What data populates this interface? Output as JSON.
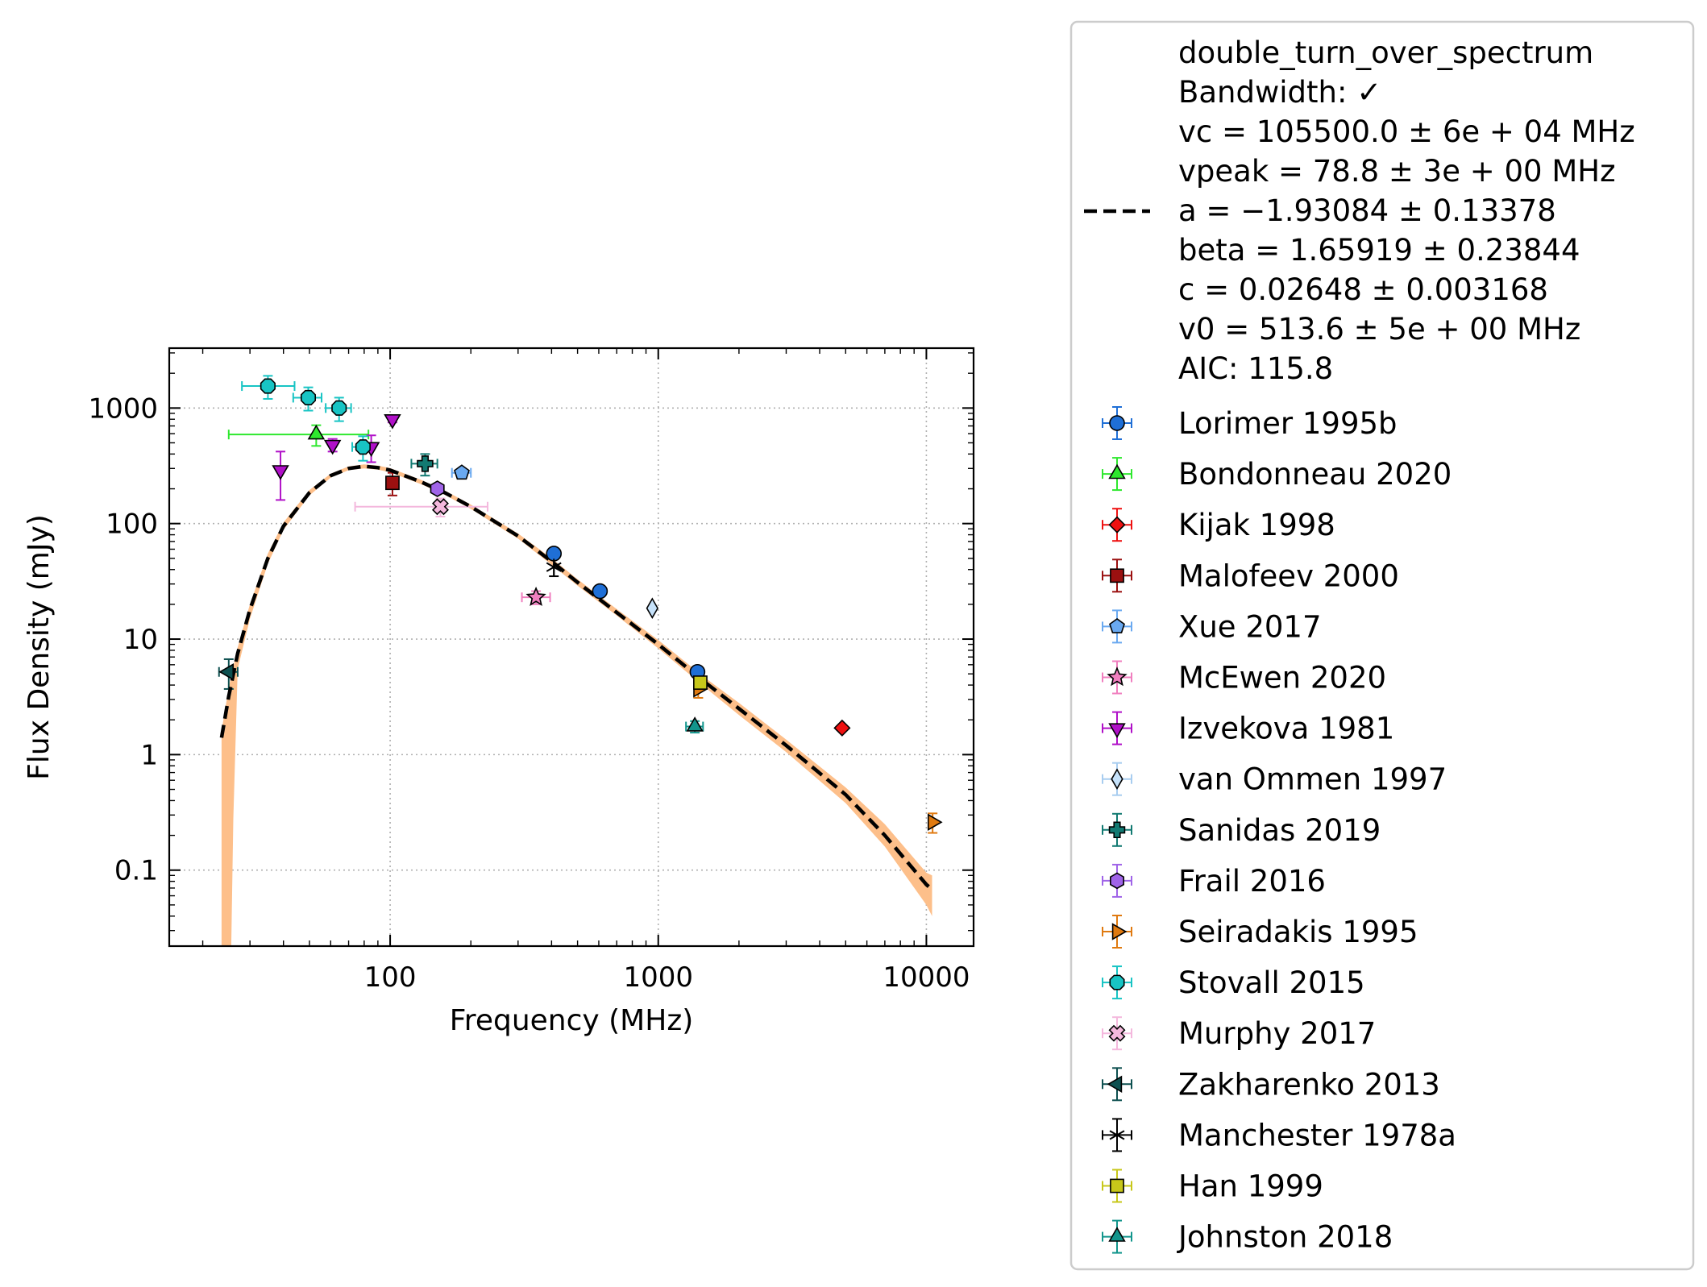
{
  "chart_data": {
    "type": "scatter",
    "xlabel": "Frequency (MHz)",
    "ylabel": "Flux Density (mJy)",
    "x_scale": "log",
    "y_scale": "log",
    "xlim": [
      15,
      15000
    ],
    "ylim": [
      0.022,
      3300
    ],
    "grid": true,
    "x_tick_values": [
      100,
      1000,
      10000
    ],
    "x_tick_labels": [
      "100",
      "1000",
      "10000"
    ],
    "y_tick_values": [
      0.1,
      1,
      10,
      100,
      1000
    ],
    "y_tick_labels": [
      "0.1",
      "1",
      "10",
      "100",
      "1000"
    ],
    "legend_position": "outside-right",
    "fit": {
      "name": "double_turn_over_spectrum",
      "label_lines": [
        "double_turn_over_spectrum",
        "Bandwidth: ✓",
        "vc = 105500.0 ± 6e + 04 MHz",
        "vpeak = 78.8 ± 3e + 00 MHz",
        "a = −1.93084 ± 0.13378",
        "beta = 1.65919 ± 0.23844",
        "c = 0.02648 ± 0.003168",
        "v0 = 513.6 ± 5e + 00 MHz",
        "AIC: 115.8"
      ],
      "line_color": "#000000",
      "band_color": "#fdbf8a",
      "curve": [
        [
          23.5,
          1.4
        ],
        [
          25,
          3.2
        ],
        [
          27,
          7.5
        ],
        [
          30,
          18
        ],
        [
          35,
          50
        ],
        [
          40,
          95
        ],
        [
          50,
          185
        ],
        [
          60,
          260
        ],
        [
          70,
          300
        ],
        [
          80,
          313
        ],
        [
          90,
          305
        ],
        [
          100,
          290
        ],
        [
          130,
          230
        ],
        [
          160,
          185
        ],
        [
          200,
          140
        ],
        [
          300,
          78
        ],
        [
          400,
          47
        ],
        [
          500,
          31
        ],
        [
          700,
          17
        ],
        [
          1000,
          9.0
        ],
        [
          1500,
          4.2
        ],
        [
          2000,
          2.5
        ],
        [
          3000,
          1.2
        ],
        [
          5000,
          0.45
        ],
        [
          7000,
          0.2
        ],
        [
          10000,
          0.075
        ],
        [
          10500,
          0.068
        ]
      ],
      "band_upper": [
        [
          23.5,
          1.6
        ],
        [
          25,
          3.8
        ],
        [
          27,
          8.5
        ],
        [
          30,
          20
        ],
        [
          35,
          55
        ],
        [
          40,
          102
        ],
        [
          50,
          195
        ],
        [
          60,
          270
        ],
        [
          70,
          312
        ],
        [
          80,
          325
        ],
        [
          90,
          318
        ],
        [
          100,
          302
        ],
        [
          130,
          240
        ],
        [
          160,
          193
        ],
        [
          200,
          146
        ],
        [
          300,
          82
        ],
        [
          400,
          50
        ],
        [
          500,
          33
        ],
        [
          700,
          18.2
        ],
        [
          1000,
          9.8
        ],
        [
          1500,
          4.6
        ],
        [
          2000,
          2.8
        ],
        [
          3000,
          1.35
        ],
        [
          5000,
          0.52
        ],
        [
          7000,
          0.25
        ],
        [
          10000,
          0.095
        ],
        [
          10500,
          0.09
        ]
      ],
      "band_lower": [
        [
          23.5,
          0.001
        ],
        [
          25,
          0.001
        ],
        [
          26,
          0.28
        ],
        [
          27,
          5.5
        ],
        [
          30,
          15
        ],
        [
          35,
          45
        ],
        [
          40,
          88
        ],
        [
          50,
          175
        ],
        [
          60,
          250
        ],
        [
          70,
          290
        ],
        [
          80,
          300
        ],
        [
          90,
          293
        ],
        [
          100,
          278
        ],
        [
          130,
          220
        ],
        [
          160,
          177
        ],
        [
          200,
          134
        ],
        [
          300,
          74
        ],
        [
          400,
          44
        ],
        [
          500,
          29
        ],
        [
          700,
          16
        ],
        [
          1000,
          8.3
        ],
        [
          1500,
          3.8
        ],
        [
          2000,
          2.2
        ],
        [
          3000,
          1.05
        ],
        [
          5000,
          0.38
        ],
        [
          7000,
          0.16
        ],
        [
          10000,
          0.05
        ],
        [
          10500,
          0.04
        ]
      ]
    },
    "series": [
      {
        "name": "Lorimer 1995b",
        "color": "#1f6fd6",
        "ecolor": "#1f6fd6",
        "marker": "circle",
        "points": [
          {
            "x": 408,
            "y": 55
          },
          {
            "x": 606,
            "y": 26
          },
          {
            "x": 1400,
            "y": 5.2,
            "yerr": [
              0.5,
              0.5
            ]
          }
        ]
      },
      {
        "name": "Bondonneau 2020",
        "color": "#2ee82e",
        "ecolor": "#2ee82e",
        "marker": "triangle-up",
        "points": [
          {
            "x": 53,
            "y": 590,
            "xerr": [
              28,
              30
            ],
            "yerr": [
              120,
              120
            ]
          }
        ]
      },
      {
        "name": "Kijak 1998",
        "color": "#ee1111",
        "ecolor": "#ee1111",
        "marker": "diamond",
        "points": [
          {
            "x": 4850,
            "y": 1.7
          }
        ]
      },
      {
        "name": "Malofeev 2000",
        "color": "#9b1010",
        "ecolor": "#9b1010",
        "marker": "square",
        "points": [
          {
            "x": 102,
            "y": 225,
            "yerr": [
              50,
              50
            ]
          }
        ]
      },
      {
        "name": "Xue 2017",
        "color": "#6aa9f0",
        "ecolor": "#6aa9f0",
        "marker": "pentagon",
        "points": [
          {
            "x": 185,
            "y": 275,
            "xerr": [
              15,
              15
            ]
          }
        ]
      },
      {
        "name": "McEwen 2020",
        "color": "#f07fbf",
        "ecolor": "#f07fbf",
        "marker": "star",
        "points": [
          {
            "x": 350,
            "y": 23,
            "xerr": [
              40,
              45
            ],
            "yerr": [
              3,
              3
            ]
          }
        ]
      },
      {
        "name": "Izvekova 1981",
        "color": "#b010c8",
        "ecolor": "#b010c8",
        "marker": "triangle-down",
        "points": [
          {
            "x": 39,
            "y": 290,
            "yerr": [
              130,
              130
            ]
          },
          {
            "x": 61,
            "y": 480,
            "yerr": [
              60,
              60
            ]
          },
          {
            "x": 85,
            "y": 460,
            "yerr": [
              120,
              120
            ]
          },
          {
            "x": 102,
            "y": 800,
            "yerr": [
              50,
              50
            ]
          }
        ]
      },
      {
        "name": "van Ommen 1997",
        "color": "#c6e2fa",
        "ecolor": "#a8cdf0",
        "marker": "thin-diamond",
        "points": [
          {
            "x": 950,
            "y": 18.5
          }
        ]
      },
      {
        "name": "Sanidas 2019",
        "color": "#127a72",
        "ecolor": "#127a72",
        "marker": "plus",
        "points": [
          {
            "x": 135,
            "y": 330,
            "xerr": [
              15,
              15
            ],
            "yerr": [
              70,
              70
            ]
          }
        ]
      },
      {
        "name": "Frail 2016",
        "color": "#a064e8",
        "ecolor": "#a064e8",
        "marker": "hexagon",
        "points": [
          {
            "x": 150,
            "y": 200,
            "xerr": [
              5,
              5
            ]
          }
        ]
      },
      {
        "name": "Seiradakis 1995",
        "color": "#e07a10",
        "ecolor": "#e07a10",
        "marker": "triangle-right",
        "points": [
          {
            "x": 1410,
            "y": 3.7,
            "yerr": [
              0.6,
              0.6
            ]
          },
          {
            "x": 10550,
            "y": 0.26,
            "yerr": [
              0.05,
              0.05
            ]
          }
        ]
      },
      {
        "name": "Stovall 2015",
        "color": "#18c4c4",
        "ecolor": "#18c4c4",
        "marker": "octagon",
        "points": [
          {
            "x": 35,
            "y": 1550,
            "xerr": [
              7,
              9
            ],
            "yerr": [
              350,
              350
            ]
          },
          {
            "x": 49.5,
            "y": 1230,
            "xerr": [
              6,
              6
            ],
            "yerr": [
              280,
              280
            ]
          },
          {
            "x": 64.5,
            "y": 1000,
            "xerr": [
              7,
              7
            ],
            "yerr": [
              230,
              230
            ]
          },
          {
            "x": 79.2,
            "y": 460,
            "xerr": [
              7,
              7
            ],
            "yerr": [
              110,
              110
            ]
          }
        ]
      },
      {
        "name": "Murphy 2017",
        "color": "#f4b8dd",
        "ecolor": "#f4b8dd",
        "marker": "x-filled",
        "points": [
          {
            "x": 154,
            "y": 140,
            "xerr": [
              80,
              77
            ],
            "yerr": [
              25,
              25
            ]
          }
        ]
      },
      {
        "name": "Zakharenko 2013",
        "color": "#0d5050",
        "ecolor": "#0d5050",
        "marker": "triangle-left",
        "points": [
          {
            "x": 25,
            "y": 5.2,
            "xerr": [
              2,
              2
            ],
            "yerr": [
              1.5,
              1.5
            ]
          }
        ]
      },
      {
        "name": "Manchester 1978a",
        "color": "#000000",
        "ecolor": "#000000",
        "marker": "asterisk",
        "points": [
          {
            "x": 408,
            "y": 42,
            "yerr": [
              7,
              7
            ]
          }
        ]
      },
      {
        "name": "Han 1999",
        "color": "#c7c71a",
        "ecolor": "#c7c71a",
        "marker": "square",
        "points": [
          {
            "x": 1435,
            "y": 4.2
          }
        ]
      },
      {
        "name": "Johnston 2018",
        "color": "#12958c",
        "ecolor": "#12958c",
        "marker": "triangle-up",
        "points": [
          {
            "x": 1369,
            "y": 1.75,
            "xerr": [
              100,
              100
            ],
            "yerr": [
              0.2,
              0.2
            ]
          }
        ]
      }
    ]
  }
}
